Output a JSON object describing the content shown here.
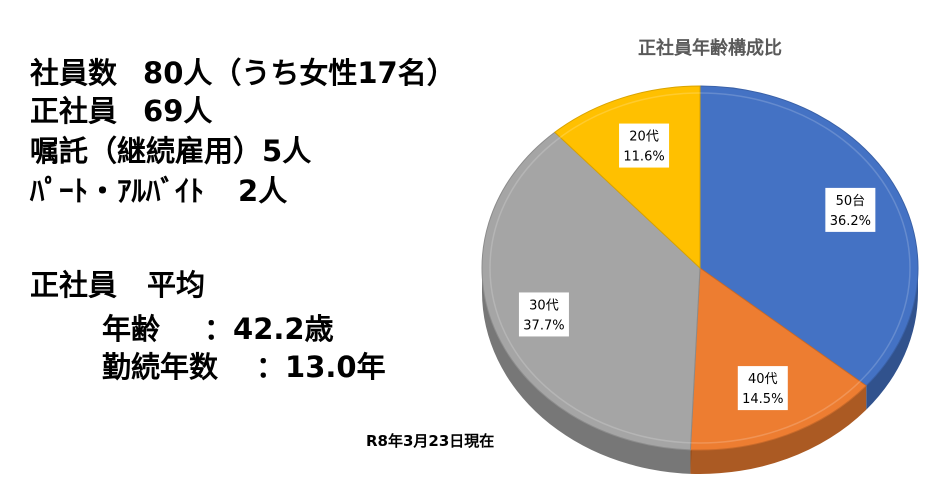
{
  "stats": {
    "employees": {
      "label": "社員数",
      "value": "80人（うち女性17名）"
    },
    "regular": {
      "label": "正社員",
      "value": "69人"
    },
    "contract": {
      "label": "嘱託（継続雇用）",
      "value": "5人"
    },
    "parttime": {
      "label": "ﾊﾟｰﾄ・ｱﾙﾊﾞｲﾄ",
      "value": "2人"
    },
    "avg_heading": {
      "label": "正社員",
      "value": "平均"
    },
    "age": {
      "label": "年齢",
      "value": "：42.2歳"
    },
    "tenure": {
      "label": "勤続年数",
      "value": "：13.0年"
    }
  },
  "as_of": "R8年3月23日現在",
  "chart_data": {
    "type": "pie",
    "title": "正社員年齢構成比",
    "style": "3d",
    "slices": [
      {
        "label": "50台",
        "value": 36.2,
        "pct_label": "36.2%",
        "color": "#4472C4"
      },
      {
        "label": "40代",
        "value": 14.5,
        "pct_label": "14.5%",
        "color": "#ED7D31"
      },
      {
        "label": "30代",
        "value": 37.7,
        "pct_label": "37.7%",
        "color": "#A5A5A5"
      },
      {
        "label": "20代",
        "value": 11.6,
        "pct_label": "11.6%",
        "color": "#FFC000"
      }
    ]
  }
}
